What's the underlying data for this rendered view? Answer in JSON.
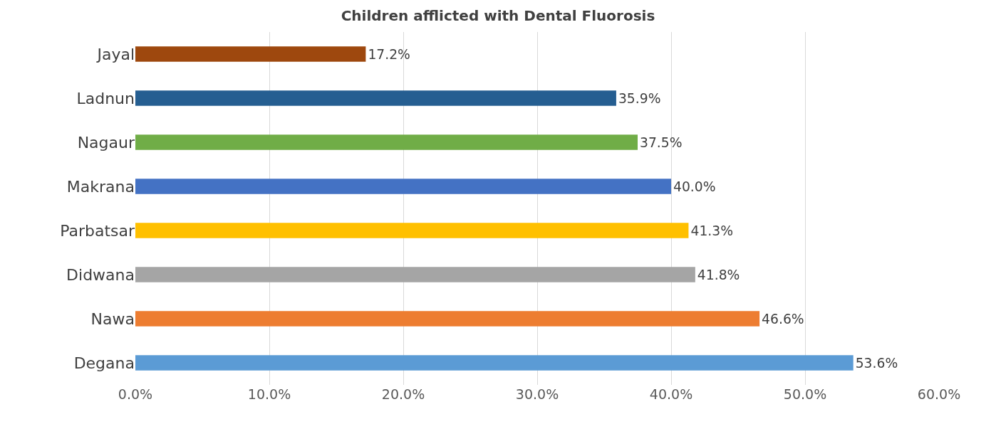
{
  "chart_data": {
    "type": "bar",
    "orientation": "horizontal",
    "title": "Children afflicted with Dental Fluorosis",
    "categories": [
      "Jayal",
      "Ladnun",
      "Nagaur",
      "Makrana",
      "Parbatsar",
      "Didwana",
      "Nawa",
      "Degana"
    ],
    "values": [
      17.2,
      35.9,
      37.5,
      40.0,
      41.3,
      41.8,
      46.6,
      53.6
    ],
    "colors": [
      "#9e480e",
      "#255e91",
      "#70ad47",
      "#4472c4",
      "#ffc000",
      "#a5a5a5",
      "#ed7d31",
      "#5b9bd5"
    ],
    "value_labels": [
      "17.2%",
      "35.9%",
      "37.5%",
      "40.0%",
      "41.3%",
      "41.8%",
      "46.6%",
      "53.6%"
    ],
    "xlim": [
      0,
      60
    ],
    "xticks": [
      {
        "value": 0,
        "label": "0.0%"
      },
      {
        "value": 10,
        "label": "10.0%"
      },
      {
        "value": 20,
        "label": "20.0%"
      },
      {
        "value": 30,
        "label": "30.0%"
      },
      {
        "value": 40,
        "label": "40.0%"
      },
      {
        "value": 50,
        "label": "50.0%"
      },
      {
        "value": 60,
        "label": "60.0%"
      }
    ],
    "grid": "x"
  }
}
